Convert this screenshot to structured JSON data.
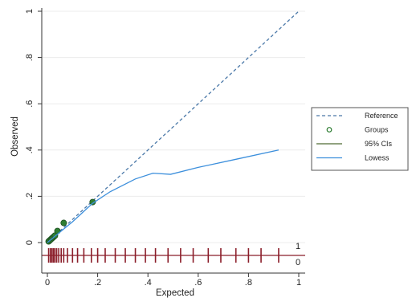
{
  "chart_data": {
    "type": "line",
    "xlabel": "Expected",
    "ylabel": "Observed",
    "xlim": [
      0,
      1
    ],
    "ylim": [
      -0.06,
      1
    ],
    "x_ticks": [
      {
        "value": 0,
        "label": "0"
      },
      {
        "value": 0.2,
        "label": ".2"
      },
      {
        "value": 0.4,
        "label": ".4"
      },
      {
        "value": 0.6,
        "label": ".6"
      },
      {
        "value": 0.8,
        "label": ".8"
      },
      {
        "value": 1,
        "label": "1"
      }
    ],
    "y_ticks": [
      {
        "value": 0,
        "label": "0"
      },
      {
        "value": 0.2,
        "label": ".2"
      },
      {
        "value": 0.4,
        "label": ".4"
      },
      {
        "value": 0.6,
        "label": ".6"
      },
      {
        "value": 0.8,
        "label": ".8"
      },
      {
        "value": 1,
        "label": "1"
      }
    ],
    "grid": true,
    "legend_position": "right",
    "legend": [
      {
        "label": "Reference",
        "style": "dashed-line"
      },
      {
        "label": "Groups",
        "style": "circle"
      },
      {
        "label": "95% CIs",
        "style": "line"
      },
      {
        "label": "Lowess",
        "style": "line"
      }
    ],
    "series": [
      {
        "name": "Reference",
        "x": [
          0,
          1
        ],
        "y": [
          0,
          1
        ],
        "color": "#4a78a8"
      },
      {
        "name": "Groups",
        "x": [
          0.005,
          0.01,
          0.015,
          0.02,
          0.025,
          0.03,
          0.04,
          0.065,
          0.18
        ],
        "y": [
          0.005,
          0.01,
          0.015,
          0.02,
          0.025,
          0.03,
          0.05,
          0.085,
          0.175
        ],
        "color": "#2e7d32"
      },
      {
        "name": "Lowess",
        "x": [
          0,
          0.05,
          0.1,
          0.18,
          0.25,
          0.35,
          0.42,
          0.49,
          0.6,
          0.75,
          0.92
        ],
        "y": [
          0,
          0.045,
          0.09,
          0.17,
          0.22,
          0.275,
          0.3,
          0.295,
          0.325,
          0.36,
          0.4
        ],
        "color": "#3c8fdc"
      }
    ],
    "rug": {
      "labels": {
        "top": "1",
        "bottom": "0"
      },
      "line_color": "#8b1e2a",
      "x": [
        0.005,
        0.012,
        0.018,
        0.024,
        0.03,
        0.037,
        0.045,
        0.055,
        0.065,
        0.08,
        0.1,
        0.12,
        0.145,
        0.175,
        0.2,
        0.23,
        0.27,
        0.31,
        0.35,
        0.39,
        0.43,
        0.48,
        0.53,
        0.58,
        0.64,
        0.69,
        0.75,
        0.8,
        0.85,
        0.92
      ]
    }
  }
}
